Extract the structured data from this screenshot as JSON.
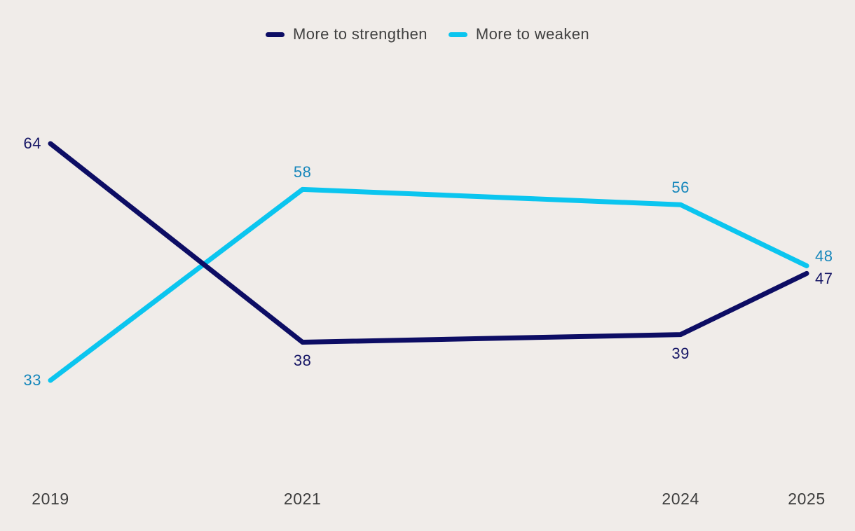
{
  "chart_data": {
    "type": "line",
    "x": [
      2019,
      2021,
      2024,
      2025
    ],
    "x_axis": {
      "tick_labels": [
        "2019",
        "2021",
        "2024",
        "2025"
      ]
    },
    "y_axis": {
      "visible": false,
      "range_shown": [
        33,
        64
      ]
    },
    "grid": false,
    "series": [
      {
        "name": "More to strengthen",
        "color": "#0d0d64",
        "label_color": "#171766",
        "values": [
          64,
          38,
          39,
          47
        ],
        "middle_label_side": "below"
      },
      {
        "name": "More to weaken",
        "color": "#0bc5ef",
        "label_color": "#1586bb",
        "values": [
          33,
          58,
          56,
          48
        ],
        "middle_label_side": "above"
      }
    ],
    "legend": {
      "position": "top-center",
      "items": [
        "More to strengthen",
        "More to weaken"
      ]
    },
    "colors": {
      "background": "#f0ece9",
      "axis_label": "#3d3d3d",
      "legend_text": "#404040"
    }
  }
}
